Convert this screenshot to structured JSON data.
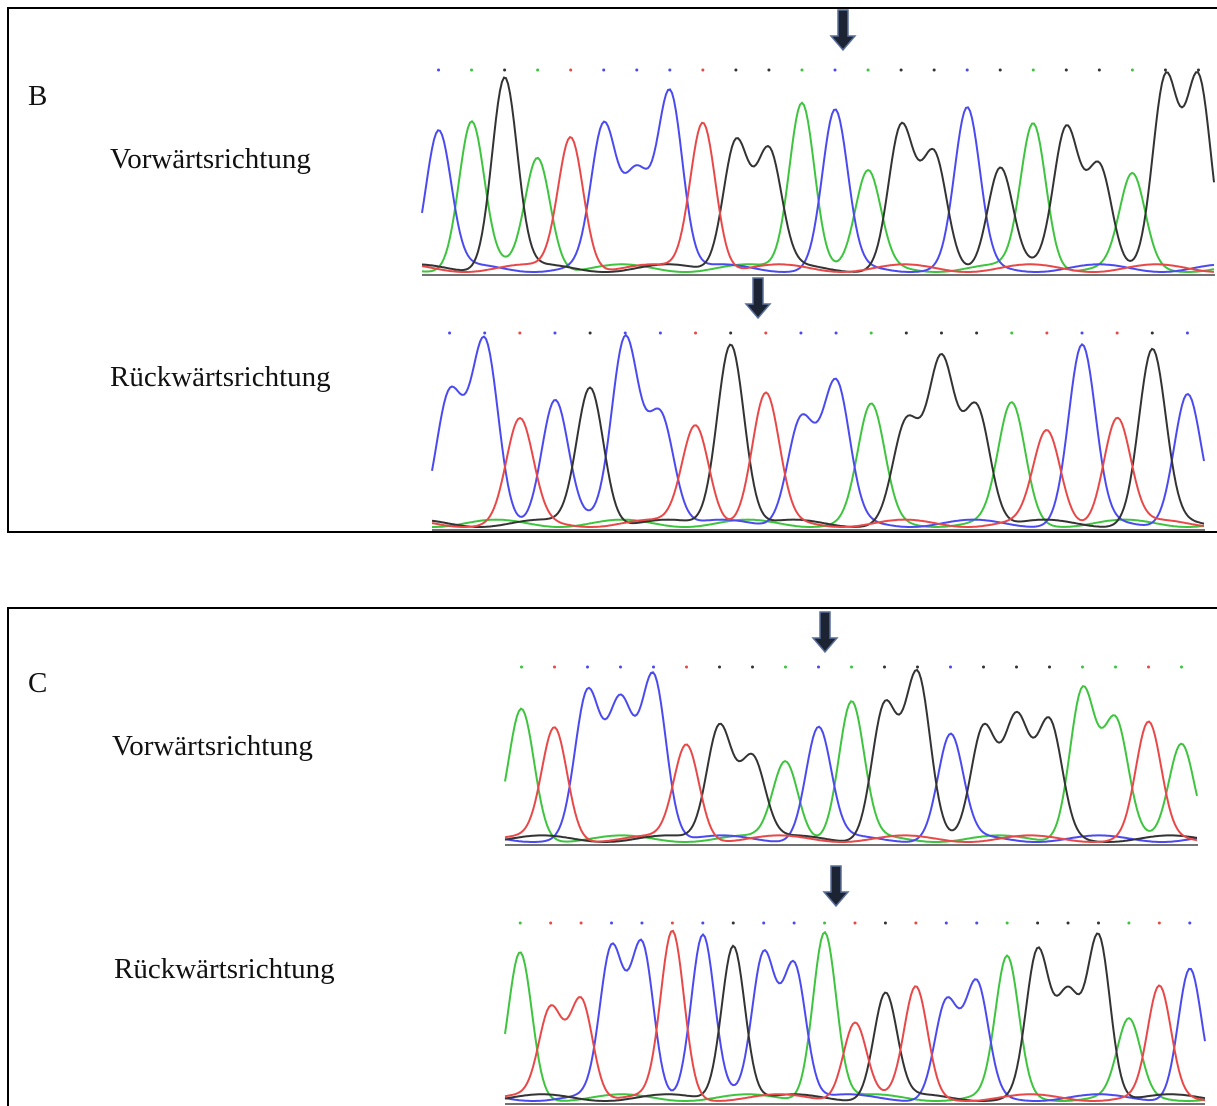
{
  "panels": [
    {
      "letter": "B",
      "forward": "Vorwärtsrichtung",
      "reverse": "Rückwärtsrichtung"
    },
    {
      "letter": "C",
      "forward": "Vorwärtsrichtung",
      "reverse": "Rückwärtsrichtung"
    }
  ]
}
